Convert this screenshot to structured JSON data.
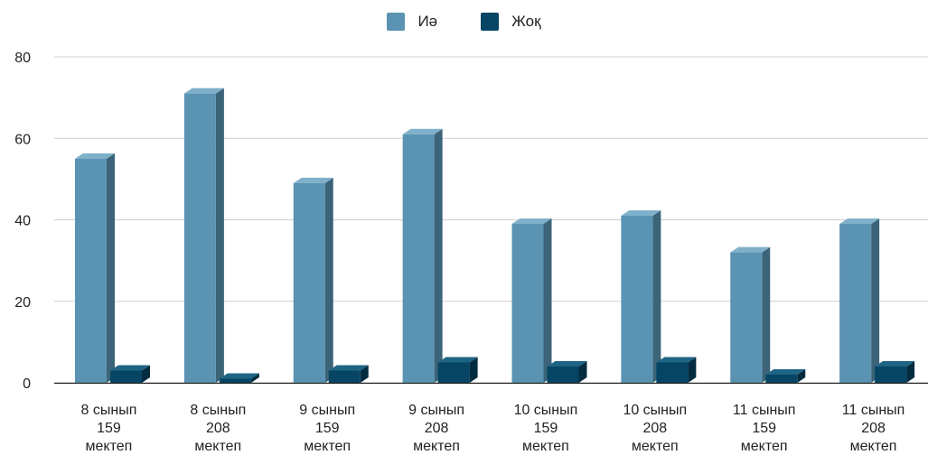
{
  "chart_data": {
    "type": "bar",
    "categories": [
      [
        "8 сынып",
        "159",
        "мектеп"
      ],
      [
        "8 сынып",
        "208",
        "мектеп"
      ],
      [
        "9 сынып",
        "159",
        "мектеп"
      ],
      [
        "9 сынып",
        "208",
        "мектеп"
      ],
      [
        "10 сынып",
        "159",
        "мектеп"
      ],
      [
        "10 сынып",
        "208",
        "мектеп"
      ],
      [
        "11 сынып",
        "159",
        "мектеп"
      ],
      [
        "11 сынып",
        "208",
        "мектеп"
      ]
    ],
    "series": [
      {
        "name": "Иә",
        "values": [
          55,
          71,
          49,
          61,
          39,
          41,
          32,
          39
        ]
      },
      {
        "name": "Жоқ",
        "values": [
          3,
          1,
          3,
          5,
          4,
          5,
          2,
          4
        ]
      }
    ],
    "ylim": [
      0,
      80
    ],
    "yticks": [
      0,
      20,
      40,
      60,
      80
    ],
    "grid": true,
    "legend_position": "top-center",
    "colors": {
      "Иә": {
        "front": "#5b93b2",
        "side": "#3c6478",
        "top": "#7fb0ca"
      },
      "Жоқ": {
        "front": "#064564",
        "side": "#032c40",
        "top": "#1f6485"
      }
    }
  }
}
